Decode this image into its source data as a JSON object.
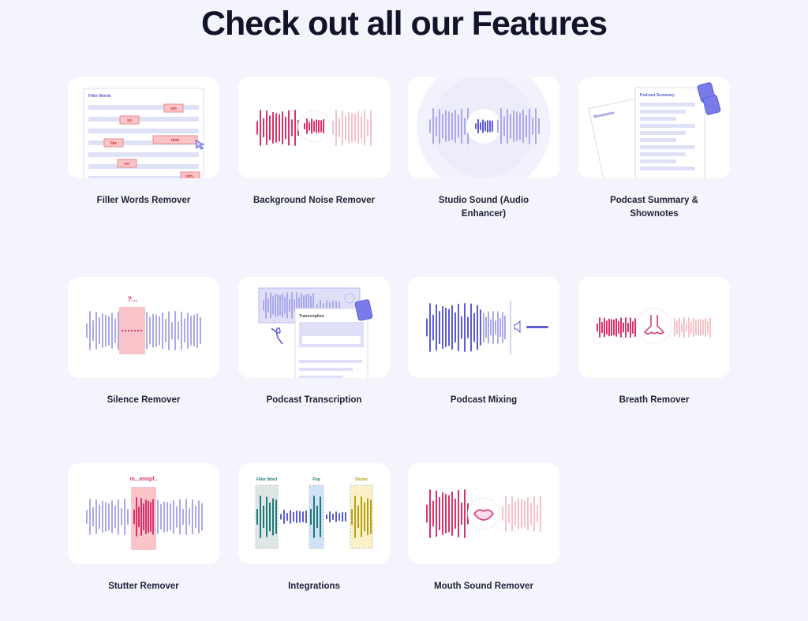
{
  "heading": "Check out all our Features",
  "features": [
    {
      "label": "Filler Words Remover",
      "art": {
        "title": "Filler Words",
        "tags": [
          "um",
          "so",
          "like",
          "uhm",
          "err",
          "uhh.."
        ]
      }
    },
    {
      "label": "Background Noise Remover"
    },
    {
      "label": "Studio Sound (Audio Enhancer)"
    },
    {
      "label": "Podcast Summary & Shownotes",
      "art": {
        "doc1": "Shownotes",
        "doc2": "Podcast Summary"
      }
    },
    {
      "label": "Silence Remover",
      "art": {
        "mark": "?..."
      }
    },
    {
      "label": "Podcast Transcription",
      "art": {
        "title": "Transcription"
      }
    },
    {
      "label": "Podcast Mixing"
    },
    {
      "label": "Breath Remover"
    },
    {
      "label": "Stutter Remover",
      "art": {
        "mark": "m...mmpf.."
      }
    },
    {
      "label": "Integrations",
      "art": {
        "tags": [
          "Filler Word",
          "Pop",
          "Stutter"
        ]
      }
    },
    {
      "label": "Mouth Sound Remover"
    }
  ],
  "colors": {
    "primary": "#5b5bd6",
    "lavender": "#a9a9ec",
    "pink": "#d6336c",
    "lightpink": "#f4c2c8",
    "teal": "#1f7a78",
    "olive": "#b8a11c"
  }
}
